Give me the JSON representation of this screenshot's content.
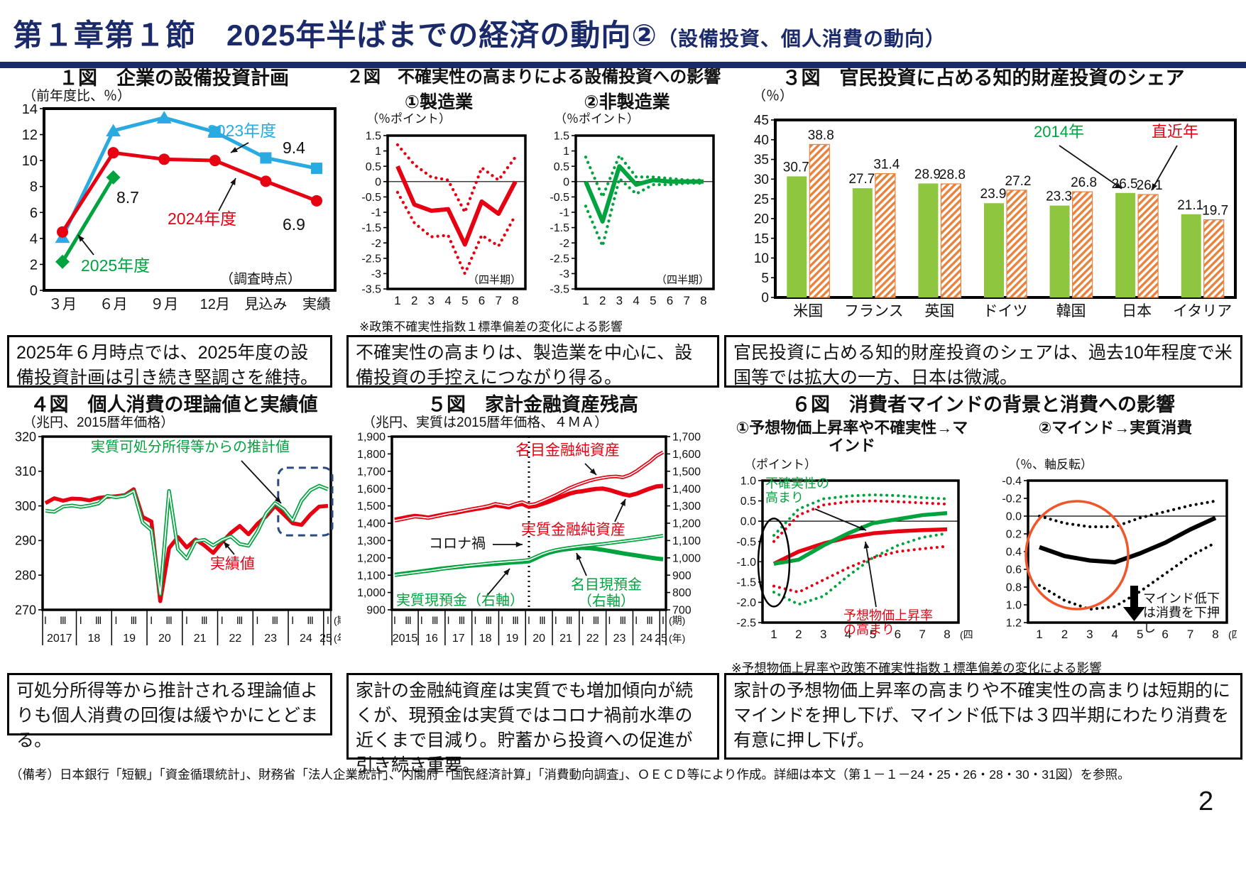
{
  "header": {
    "title": "第１章第１節　2025年半ばまでの経済の動向②",
    "subtitle": "（設備投資、個人消費の動向）"
  },
  "footer": {
    "note": "（備考）日本銀行「短観」「資金循環統計」、財務省「法人企業統計」、内閣府「国民経済計算」「消費動向調査」、ＯＥＣＤ等により作成。詳細は本文（第１－１－24・25・26・28・30・31図）を参照。",
    "page_number": "2"
  },
  "colors": {
    "navy": "#1b2a6b",
    "red": "#e60012",
    "blue": "#29abe2",
    "green": "#00a33e",
    "bar_green": "#8fc640",
    "bar_orange": "#e8823c",
    "highlight_navy": "#2b4a7d",
    "circle_orange": "#f1562b"
  },
  "chart_data": [
    {
      "id": "fig1",
      "type": "line",
      "title": "１図　企業の設備投資計画",
      "unit": "（前年度比、％）",
      "survey_note": "（調査時点）",
      "caption": "2025年６月時点では、2025年度の設備投資計画は引き続き堅調さを維持。",
      "categories": [
        "３月",
        "６月",
        "９月",
        "12月",
        "見込み",
        "実績"
      ],
      "ylim": [
        0,
        14
      ],
      "yticks": [
        0,
        2,
        4,
        6,
        8,
        10,
        12,
        14
      ],
      "series": [
        {
          "name": "2023年度",
          "color_key": "blue",
          "marker": "triangle-square",
          "values": [
            4.1,
            12.3,
            13.3,
            12.2,
            10.2,
            9.4
          ]
        },
        {
          "name": "2024年度",
          "color_key": "red",
          "marker": "circle",
          "values": [
            4.5,
            10.6,
            10.1,
            10.0,
            8.4,
            6.9
          ]
        },
        {
          "name": "2025年度",
          "color_key": "green",
          "marker": "diamond",
          "values": [
            2.2,
            8.7
          ]
        }
      ],
      "labels": {
        "v2023": "9.4",
        "v2024": "6.9",
        "v2025": "8.7"
      }
    },
    {
      "id": "fig2",
      "type": "line-band",
      "title": "２図　不確実性の高まりによる設備投資への影響",
      "footnote": "※政策不確実性指数１標準偏差の変化による影響",
      "caption": "不確実性の高まりは、製造業を中心に、設備投資の手控えにつながり得る。",
      "panels": [
        {
          "subtitle": "①製造業",
          "unit": "（％ポイント）",
          "quarter_note": "（四半期）",
          "color_key": "red",
          "ylim": [
            -3.5,
            1.5
          ],
          "yticks": [
            "1.5",
            "1",
            "0.5",
            "0",
            "-0.5",
            "-1",
            "-1.5",
            "-2",
            "-2.5",
            "-3",
            "-3.5"
          ],
          "xticks": [
            "1",
            "2",
            "3",
            "4",
            "5",
            "6",
            "7",
            "8"
          ],
          "solid": [
            0.5,
            -0.75,
            -0.95,
            -0.9,
            -2.05,
            -0.65,
            -1.05,
            0.0
          ],
          "upper": [
            1.2,
            0.55,
            0.15,
            0.05,
            -1.0,
            0.45,
            0.05,
            0.8
          ],
          "lower": [
            -0.35,
            -1.35,
            -1.8,
            -1.75,
            -3.0,
            -1.75,
            -2.1,
            -1.1
          ]
        },
        {
          "subtitle": "②非製造業",
          "unit": "（％ポイント）",
          "quarter_note": "（四半期）",
          "color_key": "green",
          "ylim": [
            -3.5,
            1.5
          ],
          "yticks": [
            "1.5",
            "1",
            "0.5",
            "0",
            "-0.5",
            "-1",
            "-1.5",
            "-2",
            "-2.5",
            "-3",
            "-3.5"
          ],
          "xticks": [
            "1",
            "2",
            "3",
            "4",
            "5",
            "6",
            "7",
            "8"
          ],
          "solid": [
            0.0,
            -1.3,
            0.5,
            -0.1,
            0.05,
            0.0,
            0.0,
            0.0
          ],
          "upper": [
            0.8,
            -0.5,
            0.85,
            0.15,
            0.15,
            0.1,
            0.05,
            0.05
          ],
          "lower": [
            -0.8,
            -2.1,
            0.1,
            -0.4,
            -0.1,
            -0.1,
            -0.05,
            -0.05
          ]
        }
      ]
    },
    {
      "id": "fig3",
      "type": "bar",
      "title": "３図　官民投資に占める知的財産投資のシェア",
      "unit": "（％）",
      "caption": "官民投資に占める知的財産投資のシェアは、過去10年程度で米国等では拡大の一方、日本は微減。",
      "categories": [
        "米国",
        "フランス",
        "英国",
        "ドイツ",
        "韓国",
        "日本",
        "イタリア"
      ],
      "ylim": [
        0,
        45
      ],
      "yticks": [
        0,
        5,
        10,
        15,
        20,
        25,
        30,
        35,
        40,
        45
      ],
      "series": [
        {
          "name": "2014年",
          "color_key": "bar_green",
          "hatched": false,
          "values": [
            30.7,
            27.7,
            28.9,
            23.9,
            23.3,
            26.5,
            21.1
          ]
        },
        {
          "name": "直近年",
          "color_key": "bar_orange",
          "hatched": true,
          "values": [
            38.8,
            31.4,
            28.8,
            27.2,
            26.8,
            26.1,
            19.7
          ]
        }
      ]
    },
    {
      "id": "fig4",
      "type": "line",
      "title": "４図　個人消費の理論値と実績値",
      "unit": "（兆円、2015暦年価格）",
      "caption": "可処分所得等から推計される理論値よりも個人消費の回復は緩やかにとどまる。",
      "ylim": [
        270,
        320
      ],
      "yticks": [
        320,
        310,
        300,
        290,
        280,
        270
      ],
      "years": [
        "2017",
        "18",
        "19",
        "20",
        "21",
        "22",
        "23",
        "24",
        "25"
      ],
      "quarters": [
        "Ⅰ",
        "Ⅲ"
      ],
      "axis_period": "(期)",
      "axis_year": "(年)",
      "series": [
        {
          "name": "実質可処分所得等からの推計値",
          "color_key": "green",
          "style": "double",
          "values": [
            298.6,
            298.3,
            299.8,
            300.1,
            299.7,
            300.1,
            300.7,
            302.9,
            302.5,
            302.9,
            304.3,
            295.2,
            293.0,
            274.5,
            304.3,
            287.5,
            284.8,
            289.8,
            290.2,
            288.6,
            290.2,
            291.2,
            289.0,
            288.5,
            292.5,
            297.8,
            300.8,
            299.0,
            295.8,
            301.5,
            304.5,
            305.8,
            304.8
          ]
        },
        {
          "name": "実績値",
          "color_key": "red",
          "style": "thick",
          "values": [
            300.8,
            302.2,
            301.5,
            302.1,
            302.0,
            301.6,
            302.3,
            302.6,
            302.8,
            303.1,
            304.8,
            296.8,
            295.5,
            272.5,
            287.8,
            291.0,
            288.0,
            290.3,
            288.6,
            286.4,
            289.5,
            292.2,
            294.2,
            291.8,
            294.8,
            297.0,
            300.0,
            297.5,
            295.0,
            294.5,
            297.5,
            299.8,
            300.0
          ]
        }
      ]
    },
    {
      "id": "fig5",
      "type": "line",
      "title": "５図　家計金融資産残高",
      "unit": "（兆円、実質は2015暦年価格、４ＭＡ）",
      "caption": "家計の金融純資産は実質でも増加傾向が続くが、現預金は実質ではコロナ禍前水準の近くまで目減り。貯蓄から投資への促進が引き続き重要。",
      "ylim_left": [
        900,
        1900
      ],
      "yticks_left": [
        "1,900",
        "1,800",
        "1,700",
        "1,600",
        "1,500",
        "1,400",
        "1,300",
        "1,200",
        "1,100",
        "1,000",
        "900"
      ],
      "ylim_right": [
        700,
        1700
      ],
      "yticks_right": [
        "1,700",
        "1,600",
        "1,500",
        "1,400",
        "1,300",
        "1,200",
        "1,100",
        "1,000",
        "900",
        "800",
        "700"
      ],
      "years": [
        "2015",
        "16",
        "17",
        "18",
        "19",
        "20",
        "21",
        "22",
        "23",
        "24",
        "25"
      ],
      "quarters": [
        "Ⅰ",
        "Ⅲ"
      ],
      "axis_period": "(期)",
      "axis_year": "(年)",
      "covid_label": "コロナ禍",
      "series": [
        {
          "name": "名目金融純資産",
          "axis": "left",
          "color_key": "red",
          "style": "double",
          "values": [
            1415,
            1422,
            1430,
            1438,
            1435,
            1430,
            1438,
            1446,
            1455,
            1462,
            1470,
            1478,
            1485,
            1492,
            1500,
            1512,
            1505,
            1498,
            1512,
            1522,
            1505,
            1512,
            1528,
            1545,
            1562,
            1582,
            1602,
            1618,
            1632,
            1645,
            1655,
            1662,
            1668,
            1670,
            1665,
            1678,
            1700,
            1728,
            1755,
            1788,
            1810
          ]
        },
        {
          "name": "実質金融純資産",
          "axis": "left",
          "color_key": "red",
          "style": "thick",
          "values": [
            1420,
            1428,
            1436,
            1442,
            1438,
            1432,
            1440,
            1448,
            1455,
            1460,
            1468,
            1475,
            1482,
            1488,
            1495,
            1505,
            1498,
            1492,
            1505,
            1512,
            1495,
            1500,
            1512,
            1525,
            1540,
            1555,
            1570,
            1580,
            1585,
            1592,
            1598,
            1600,
            1592,
            1580,
            1568,
            1560,
            1570,
            1585,
            1600,
            1612,
            1615
          ]
        },
        {
          "name": "名目現預金（右軸）",
          "axis": "right",
          "color_key": "green",
          "style": "double",
          "values": [
            900,
            905,
            910,
            915,
            920,
            925,
            930,
            936,
            941,
            946,
            951,
            956,
            960,
            964,
            968,
            972,
            975,
            978,
            981,
            984,
            988,
            1005,
            1022,
            1035,
            1045,
            1052,
            1058,
            1063,
            1068,
            1072,
            1076,
            1080,
            1085,
            1090,
            1095,
            1100,
            1105,
            1110,
            1116,
            1122,
            1128
          ]
        },
        {
          "name": "実質現預金（右軸）",
          "axis": "right",
          "color_key": "green",
          "style": "thick",
          "values": [
            902,
            907,
            912,
            917,
            922,
            927,
            932,
            938,
            942,
            946,
            950,
            954,
            957,
            960,
            963,
            966,
            969,
            972,
            975,
            977,
            980,
            998,
            1016,
            1030,
            1040,
            1047,
            1052,
            1056,
            1058,
            1056,
            1052,
            1046,
            1040,
            1033,
            1026,
            1020,
            1014,
            1008,
            1002,
            996,
            992
          ]
        }
      ]
    },
    {
      "id": "fig6",
      "type": "line-band",
      "title": "６図　消費者マインドの背景と消費への影響",
      "footnote": "※予想物価上昇率や政策不確実性指数１標準偏差の変化による影響",
      "caption": "家計の予想物価上昇率の高まりや不確実性の高まりは短期的にマインドを押し下げ、マインド低下は３四半期にわたり消費を有意に押し下げ。",
      "panels": [
        {
          "subtitle": "①予想物価上昇率や不確実性→マインド",
          "unit": "（ポイント）",
          "quarter_note": "(四半期)",
          "ylim": [
            -2.5,
            1.0
          ],
          "yticks": [
            "1.0",
            "0.5",
            "0.0",
            "-0.5",
            "-1.0",
            "-1.5",
            "-2.0",
            "-2.5"
          ],
          "xticks": [
            "1",
            "2",
            "3",
            "4",
            "5",
            "6",
            "7",
            "8"
          ],
          "uncertainty_label": "不確実性の高まり",
          "inflation_label": "予想物価上昇率の高まり",
          "green_solid": [
            -1.05,
            -0.95,
            -0.6,
            -0.3,
            -0.05,
            0.05,
            0.15,
            0.2
          ],
          "red_solid": [
            -1.05,
            -0.75,
            -0.55,
            -0.4,
            -0.3,
            -0.25,
            -0.22,
            -0.2
          ],
          "green_upper": [
            -0.35,
            0.3,
            0.55,
            0.62,
            0.65,
            0.63,
            0.58,
            0.55
          ],
          "red_upper": [
            -0.5,
            0.15,
            0.4,
            0.48,
            0.5,
            0.48,
            0.45,
            0.42
          ],
          "green_lower": [
            -1.75,
            -2.05,
            -1.85,
            -1.35,
            -0.9,
            -0.6,
            -0.4,
            -0.3
          ],
          "red_lower": [
            -1.6,
            -1.75,
            -1.45,
            -1.15,
            -0.9,
            -0.75,
            -0.68,
            -0.62
          ]
        },
        {
          "subtitle": "②マインド→実質消費",
          "unit": "（％、軸反転）",
          "quarter_note": "(四半期)",
          "ylim_inverted": [
            -0.4,
            1.2
          ],
          "yticks": [
            "-0.4",
            "-0.2",
            "0.0",
            "0.2",
            "0.4",
            "0.6",
            "0.8",
            "1.0",
            "1.2"
          ],
          "xticks": [
            "1",
            "2",
            "3",
            "4",
            "5",
            "6",
            "7",
            "8"
          ],
          "annotation": "マインド低下は消費を下押し",
          "solid": [
            0.35,
            0.45,
            0.5,
            0.52,
            0.42,
            0.3,
            0.15,
            0.02
          ],
          "upper": [
            0.0,
            0.08,
            0.12,
            0.12,
            0.02,
            -0.05,
            -0.12,
            -0.17
          ],
          "lower": [
            0.78,
            0.95,
            1.05,
            1.02,
            0.85,
            0.65,
            0.45,
            0.3
          ]
        }
      ]
    }
  ]
}
